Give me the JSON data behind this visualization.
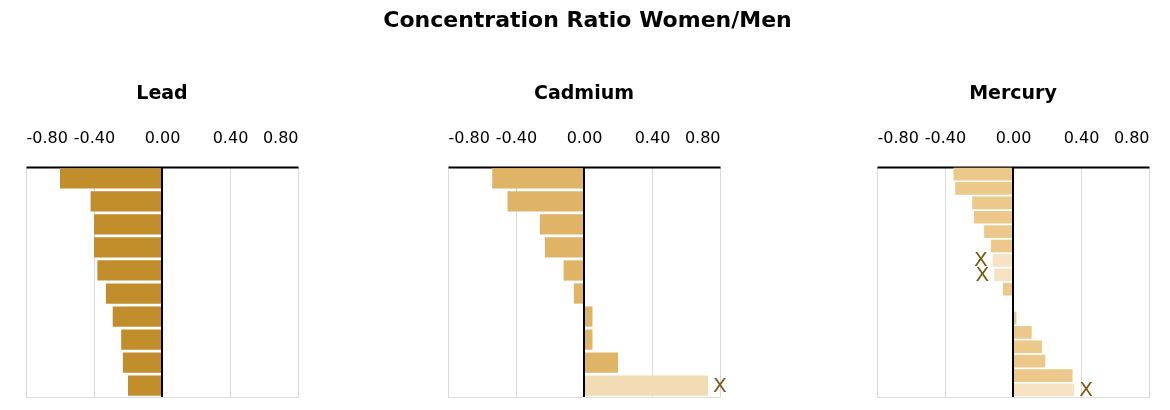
{
  "chart_data": [
    {
      "type": "bar",
      "orientation": "horizontal",
      "title": "Lead",
      "annotations": [
        "Concentration Ratio Women/Men"
      ],
      "categories": [
        null,
        null,
        null,
        null,
        null,
        null,
        null,
        null,
        null,
        null
      ],
      "values": [
        -0.6,
        -0.42,
        -0.4,
        -0.4,
        -0.38,
        -0.33,
        -0.29,
        -0.24,
        -0.23,
        -0.2
      ],
      "colors": [
        "#c28e2b",
        "#c28e2b",
        "#c28e2b",
        "#c28e2b",
        "#c28e2b",
        "#c28e2b",
        "#c28e2b",
        "#c28e2b",
        "#c28e2b",
        "#c28e2b"
      ],
      "xlim": [
        -0.8,
        0.8
      ],
      "xticks": [
        {
          "value": -0.8,
          "label": "-0.80"
        },
        {
          "value": -0.4,
          "label": "-0.40"
        },
        {
          "value": 0,
          "label": "0.00"
        },
        {
          "value": 0.4,
          "label": "0.40"
        },
        {
          "value": 0.8,
          "label": "0.80"
        }
      ],
      "grid": "x",
      "tick_labels": "x",
      "ref_lines": [
        {
          "axis": "x",
          "value": 0,
          "color": "#000000"
        }
      ]
    },
    {
      "type": "bar",
      "orientation": "horizontal",
      "title": "Cadmium",
      "categories": [
        null,
        null,
        null,
        null,
        null,
        null,
        null,
        null,
        null,
        null
      ],
      "values": [
        -0.54,
        -0.45,
        -0.26,
        -0.23,
        -0.12,
        -0.06,
        0.05,
        0.05,
        0.2,
        0.73
      ],
      "colors": [
        "#e0b466",
        "#e0b466",
        "#e0b466",
        "#e0b466",
        "#e0b466",
        "#e0b466",
        "#e0b466",
        "#e0b466",
        "#e0b466",
        "#f1dcb3"
      ],
      "value_labels": [
        null,
        null,
        null,
        null,
        null,
        null,
        null,
        null,
        null,
        "X"
      ],
      "xlim": [
        -0.8,
        0.8
      ],
      "xticks": [
        {
          "value": -0.8,
          "label": "-0.80"
        },
        {
          "value": -0.4,
          "label": "-0.40"
        },
        {
          "value": 0,
          "label": "0.00"
        },
        {
          "value": 0.4,
          "label": "0.40"
        },
        {
          "value": 0.8,
          "label": "0.80"
        }
      ],
      "grid": "x",
      "tick_labels": "x",
      "ref_lines": [
        {
          "axis": "x",
          "value": 0,
          "color": "#000000"
        }
      ]
    },
    {
      "type": "bar",
      "orientation": "horizontal",
      "title": "Mercury",
      "categories": [
        null,
        null,
        null,
        null,
        null,
        null,
        null,
        null,
        null,
        null,
        null,
        null,
        null,
        null,
        null,
        null
      ],
      "values": [
        -0.35,
        -0.34,
        -0.24,
        -0.23,
        -0.17,
        -0.13,
        -0.12,
        -0.11,
        -0.06,
        null,
        0.02,
        0.11,
        0.17,
        0.19,
        0.35,
        0.36
      ],
      "colors": [
        "#ecc98a",
        "#ecc98a",
        "#ecc98a",
        "#ecc98a",
        "#ecc98a",
        "#ecc98a",
        "#f5e3c3",
        "#f5e3c3",
        "#ecc98a",
        "#ecc98a",
        "#ecc98a",
        "#ecc98a",
        "#ecc98a",
        "#ecc98a",
        "#ecc98a",
        "#f5e3c3"
      ],
      "value_labels": [
        null,
        null,
        null,
        null,
        null,
        null,
        "X",
        "X",
        null,
        null,
        null,
        null,
        null,
        null,
        null,
        "X"
      ],
      "xlim": [
        -0.8,
        0.8
      ],
      "xticks": [
        {
          "value": -0.8,
          "label": "-0.80"
        },
        {
          "value": -0.4,
          "label": "-0.40"
        },
        {
          "value": 0,
          "label": "0.00"
        },
        {
          "value": 0.4,
          "label": "0.40"
        },
        {
          "value": 0.8,
          "label": "0.80"
        }
      ],
      "grid": "x",
      "tick_labels": "x",
      "ref_lines": [
        {
          "axis": "x",
          "value": 0,
          "color": "#000000"
        }
      ]
    }
  ]
}
